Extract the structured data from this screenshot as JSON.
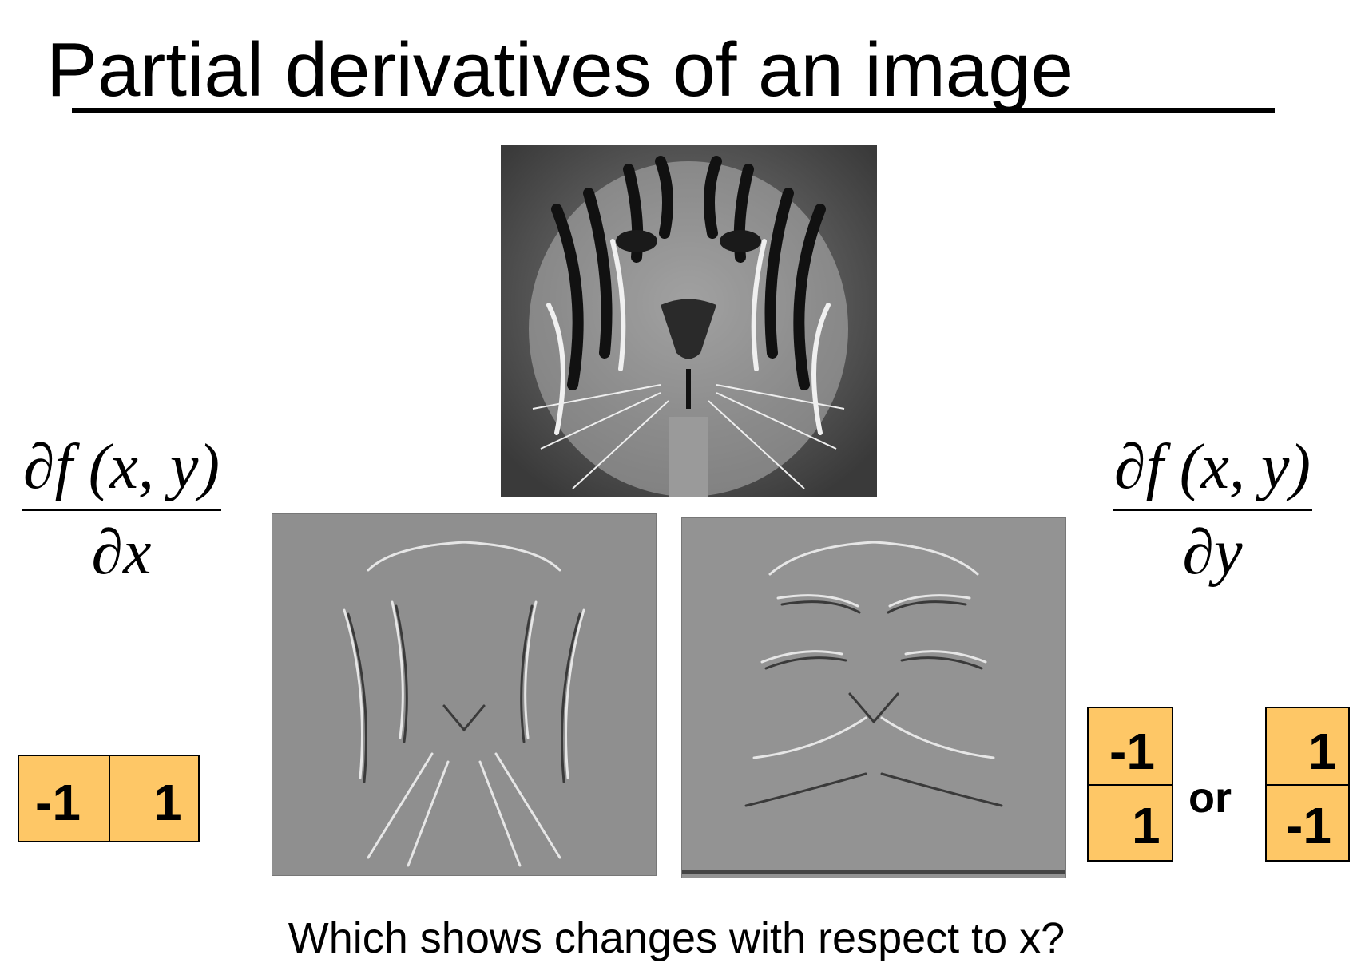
{
  "slide": {
    "title": "Partial derivatives of an image",
    "question": "Which shows changes with respect to x?"
  },
  "left_formula": {
    "numerator": "∂f (x, y)",
    "denominator": "∂x"
  },
  "right_formula": {
    "numerator": "∂f (x, y)",
    "denominator": "∂y"
  },
  "kernel_x": {
    "cells": [
      "-1",
      "1"
    ]
  },
  "kernel_y_first": {
    "cells": [
      "-1",
      "1"
    ]
  },
  "kernel_y_second": {
    "cells": [
      "1",
      "-1"
    ]
  },
  "or_label": "or",
  "images": {
    "original": "tiger-photo",
    "derivative_a": "tiger-derivative-image",
    "derivative_b": "tiger-derivative-image"
  }
}
